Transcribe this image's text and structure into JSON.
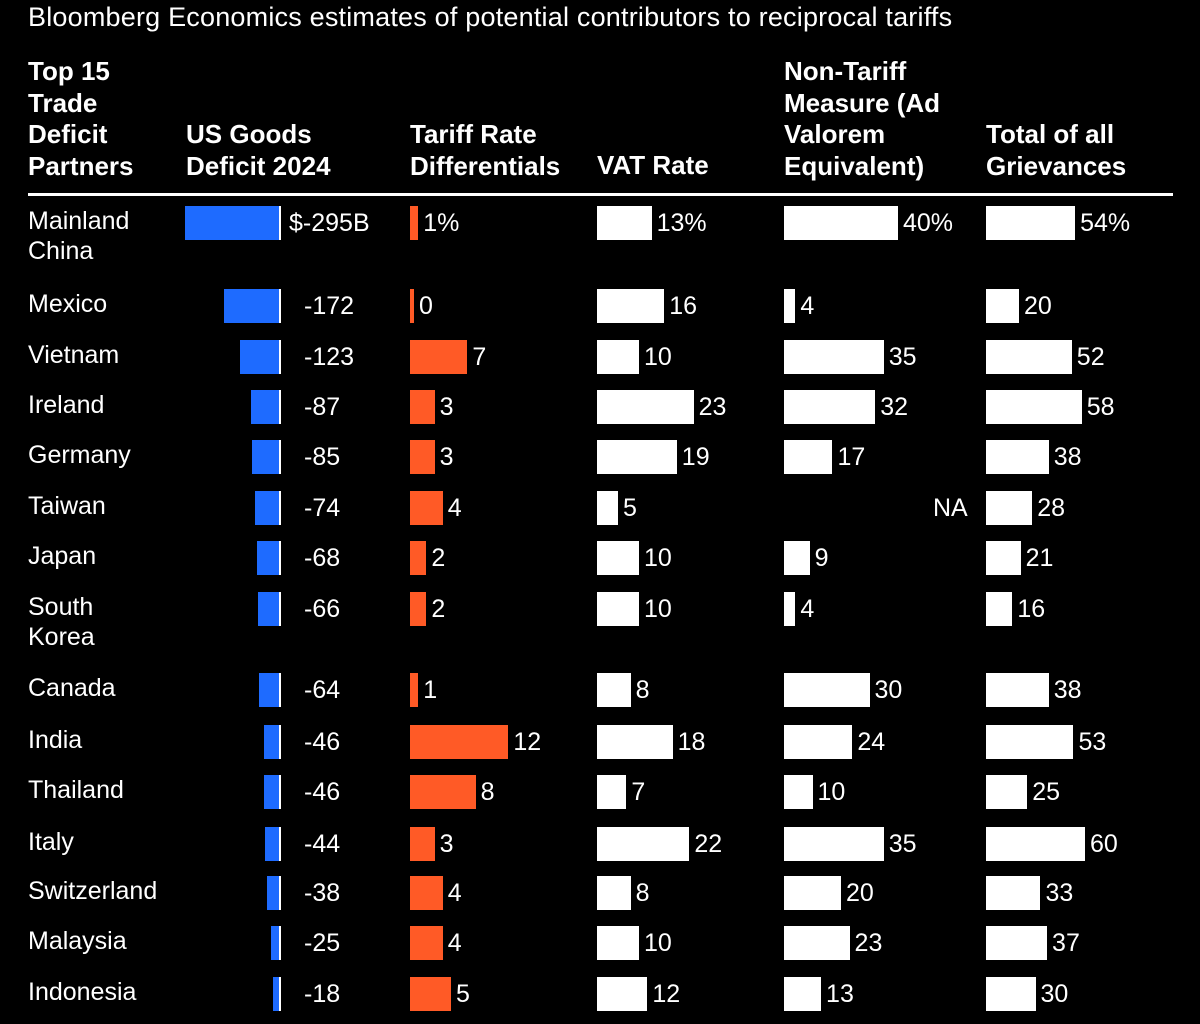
{
  "title": "Bloomberg Economics estimates of potential contributors to reciprocal tariffs",
  "columns": {
    "partner": "Top 15\nTrade\nDeficit\nPartners",
    "deficit": "US Goods\nDeficit 2024",
    "tariff": "Tariff Rate\nDifferentials",
    "vat": "VAT Rate",
    "ntm": "Non-Tariff\nMeasure (Ad\nValorem\nEquivalent)",
    "total": "Total of all\nGrievances"
  },
  "colors": {
    "background": "#000000",
    "deficit": "#1e6bff",
    "tariff": "#ff5a26",
    "vat": "#ffffff",
    "ntm": "#ffffff",
    "total": "#ffffff"
  },
  "chart_data": {
    "type": "table",
    "title": "Bloomberg Economics estimates of potential contributors to reciprocal tariffs",
    "units": {
      "deficit": "$B",
      "tariff": "%",
      "vat": "%",
      "ntm": "%",
      "total": "%"
    },
    "rows": [
      {
        "country": "Mainland\nChina",
        "deficit": -295,
        "deficit_label": "$-295B",
        "tariff": 1,
        "tariff_label": "1%",
        "vat": 13,
        "vat_label": "13%",
        "ntm": 40,
        "ntm_label": "40%",
        "total": 54,
        "total_label": "54%"
      },
      {
        "country": "Mexico",
        "deficit": -172,
        "deficit_label": "-172",
        "tariff": 0,
        "tariff_label": "0",
        "vat": 16,
        "vat_label": "16",
        "ntm": 4,
        "ntm_label": "4",
        "total": 20,
        "total_label": "20"
      },
      {
        "country": "Vietnam",
        "deficit": -123,
        "deficit_label": "-123",
        "tariff": 7,
        "tariff_label": "7",
        "vat": 10,
        "vat_label": "10",
        "ntm": 35,
        "ntm_label": "35",
        "total": 52,
        "total_label": "52"
      },
      {
        "country": "Ireland",
        "deficit": -87,
        "deficit_label": "-87",
        "tariff": 3,
        "tariff_label": "3",
        "vat": 23,
        "vat_label": "23",
        "ntm": 32,
        "ntm_label": "32",
        "total": 58,
        "total_label": "58"
      },
      {
        "country": "Germany",
        "deficit": -85,
        "deficit_label": "-85",
        "tariff": 3,
        "tariff_label": "3",
        "vat": 19,
        "vat_label": "19",
        "ntm": 17,
        "ntm_label": "17",
        "total": 38,
        "total_label": "38"
      },
      {
        "country": "Taiwan",
        "deficit": -74,
        "deficit_label": "-74",
        "tariff": 4,
        "tariff_label": "4",
        "vat": 5,
        "vat_label": "5",
        "ntm": null,
        "ntm_label": "NA",
        "total": 28,
        "total_label": "28"
      },
      {
        "country": "Japan",
        "deficit": -68,
        "deficit_label": "-68",
        "tariff": 2,
        "tariff_label": "2",
        "vat": 10,
        "vat_label": "10",
        "ntm": 9,
        "ntm_label": "9",
        "total": 21,
        "total_label": "21"
      },
      {
        "country": "South\nKorea",
        "deficit": -66,
        "deficit_label": "-66",
        "tariff": 2,
        "tariff_label": "2",
        "vat": 10,
        "vat_label": "10",
        "ntm": 4,
        "ntm_label": "4",
        "total": 16,
        "total_label": "16"
      },
      {
        "country": "Canada",
        "deficit": -64,
        "deficit_label": "-64",
        "tariff": 1,
        "tariff_label": "1",
        "vat": 8,
        "vat_label": "8",
        "ntm": 30,
        "ntm_label": "30",
        "total": 38,
        "total_label": "38"
      },
      {
        "country": "India",
        "deficit": -46,
        "deficit_label": "-46",
        "tariff": 12,
        "tariff_label": "12",
        "vat": 18,
        "vat_label": "18",
        "ntm": 24,
        "ntm_label": "24",
        "total": 53,
        "total_label": "53"
      },
      {
        "country": "Thailand",
        "deficit": -46,
        "deficit_label": "-46",
        "tariff": 8,
        "tariff_label": "8",
        "vat": 7,
        "vat_label": "7",
        "ntm": 10,
        "ntm_label": "10",
        "total": 25,
        "total_label": "25"
      },
      {
        "country": "Italy",
        "deficit": -44,
        "deficit_label": "-44",
        "tariff": 3,
        "tariff_label": "3",
        "vat": 22,
        "vat_label": "22",
        "ntm": 35,
        "ntm_label": "35",
        "total": 60,
        "total_label": "60"
      },
      {
        "country": "Switzerland",
        "deficit": -38,
        "deficit_label": "-38",
        "tariff": 4,
        "tariff_label": "4",
        "vat": 8,
        "vat_label": "8",
        "ntm": 20,
        "ntm_label": "20",
        "total": 33,
        "total_label": "33"
      },
      {
        "country": "Malaysia",
        "deficit": -25,
        "deficit_label": "-25",
        "tariff": 4,
        "tariff_label": "4",
        "vat": 10,
        "vat_label": "10",
        "ntm": 23,
        "ntm_label": "23",
        "total": 37,
        "total_label": "37"
      },
      {
        "country": "Indonesia",
        "deficit": -18,
        "deficit_label": "-18",
        "tariff": 5,
        "tariff_label": "5",
        "vat": 12,
        "vat_label": "12",
        "ntm": 13,
        "ntm_label": "13",
        "total": 30,
        "total_label": "30"
      }
    ]
  }
}
